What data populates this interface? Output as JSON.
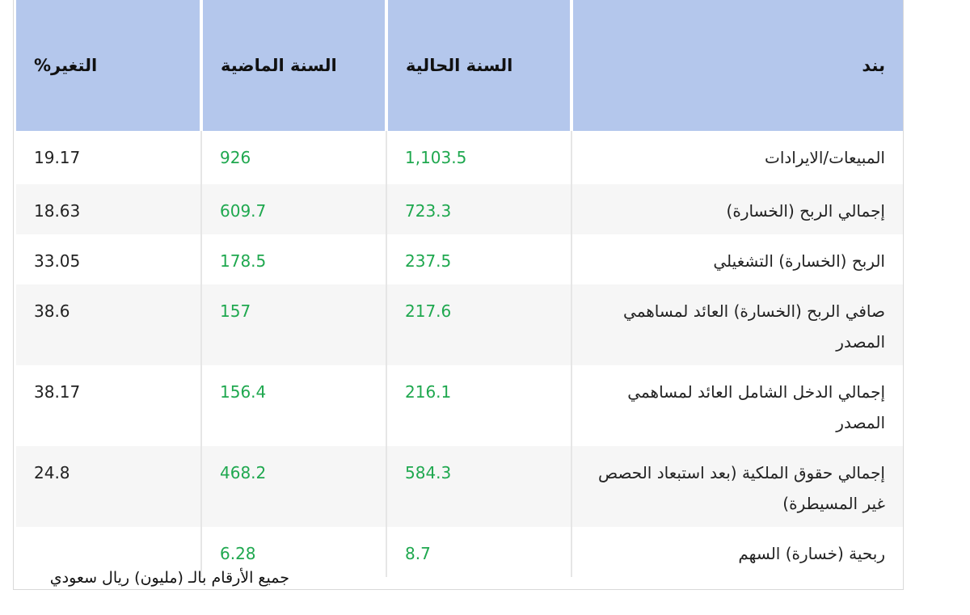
{
  "table": {
    "headers": {
      "item": "بند",
      "current_year": "السنة الحالية",
      "previous_year": "السنة الماضية",
      "change_pct": "التغير%"
    },
    "rows": [
      {
        "item": "المبيعات/الايرادات",
        "current": "1,103.5",
        "previous": "926",
        "change": "19.17"
      },
      {
        "item": "إجمالي الربح (الخسارة)",
        "current": "723.3",
        "previous": "609.7",
        "change": "18.63"
      },
      {
        "item": "الربح (الخسارة) التشغيلي",
        "current": "237.5",
        "previous": "178.5",
        "change": "33.05"
      },
      {
        "item": "صافي الربح (الخسارة) العائد لمساهمي المصدر",
        "current": "217.6",
        "previous": "157",
        "change": "38.6"
      },
      {
        "item": "إجمالي الدخل الشامل العائد لمساهمي المصدر",
        "current": "216.1",
        "previous": "156.4",
        "change": "38.17"
      },
      {
        "item": "إجمالي حقوق الملكية (بعد استبعاد الحصص غير المسيطرة)",
        "current": "584.3",
        "previous": "468.2",
        "change": "24.8"
      },
      {
        "item": "ربحية (خسارة) السهم",
        "current": "8.7",
        "previous": "6.28",
        "change": ""
      }
    ]
  },
  "footnote": "جميع الأرقام بالـ (مليون) ريال سعودي",
  "colors": {
    "header_bg": "#b4c7ec",
    "previous_year_text": "#1fa84f",
    "current_year_text": "#1fa84f",
    "alt_row_bg": "#f6f6f6"
  }
}
